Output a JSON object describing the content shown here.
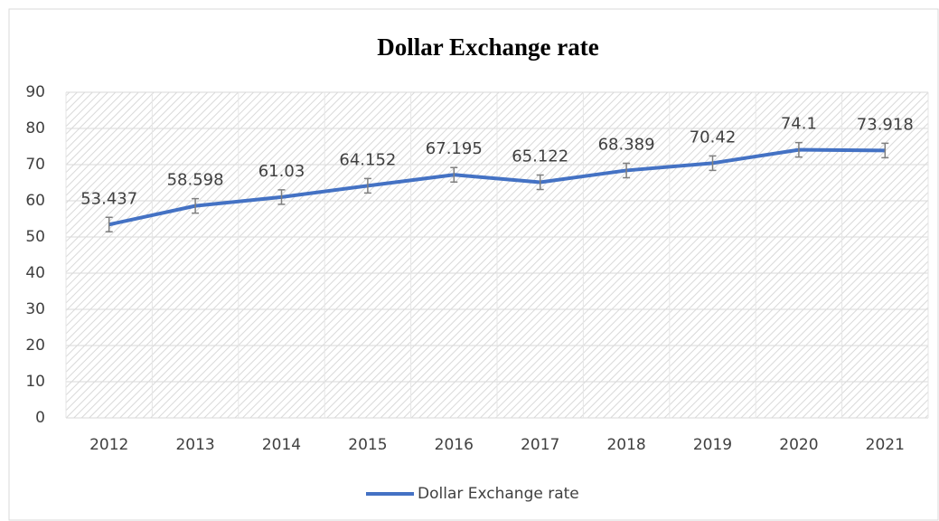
{
  "chart_data": {
    "type": "line",
    "title": "Dollar Exchange rate",
    "categories": [
      "2012",
      "2013",
      "2014",
      "2015",
      "2016",
      "2017",
      "2018",
      "2019",
      "2020",
      "2021"
    ],
    "series": [
      {
        "name": "Dollar Exchange rate",
        "color": "#4472c4",
        "values": [
          53.437,
          58.598,
          61.03,
          64.152,
          67.195,
          65.122,
          68.389,
          70.42,
          74.1,
          73.918
        ],
        "errors": [
          2,
          2,
          2,
          2,
          2,
          2,
          2,
          2,
          2,
          2
        ]
      }
    ],
    "ylim": [
      0,
      90
    ],
    "yticks": [
      0,
      10,
      20,
      30,
      40,
      50,
      60,
      70,
      80,
      90
    ],
    "grid": true,
    "legend": "bottom"
  }
}
